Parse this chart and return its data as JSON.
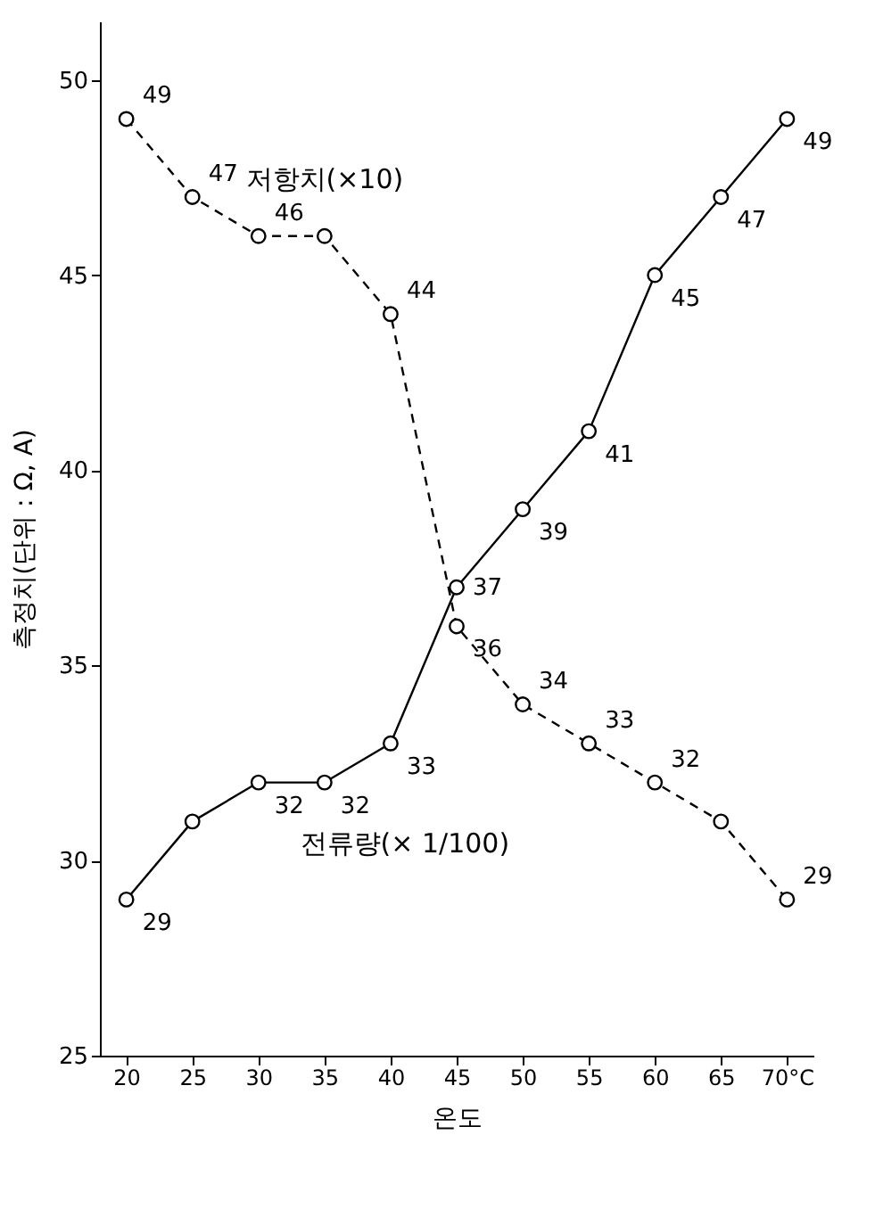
{
  "chart_data": {
    "type": "line",
    "xlabel": "온도",
    "ylabel": "측정치(단위 : Ω, A)",
    "x": [
      20,
      25,
      30,
      35,
      40,
      45,
      50,
      55,
      60,
      65,
      70
    ],
    "series": [
      {
        "name": "저항치(×10)",
        "color": "#000000",
        "line_style": "dashed",
        "values": [
          49,
          47,
          46,
          46,
          44,
          36,
          34,
          33,
          32,
          31,
          29
        ],
        "value_labels": [
          "49",
          "47",
          "46",
          null,
          "44",
          "36",
          "34",
          "33",
          "32",
          null,
          "29"
        ]
      },
      {
        "name": "전류량(× 1/100)",
        "color": "#000000",
        "line_style": "solid",
        "values": [
          29,
          31,
          32,
          32,
          33,
          37,
          39,
          41,
          45,
          47,
          49
        ],
        "value_labels": [
          "29",
          null,
          "32",
          "32",
          "33",
          "37",
          "39",
          "41",
          "45",
          "47",
          "49"
        ]
      }
    ],
    "xlim": [
      18,
      72
    ],
    "xticks": [
      20,
      25,
      30,
      35,
      40,
      45,
      50,
      55,
      60,
      65,
      {
        "value": 70,
        "label": "70°C"
      }
    ],
    "ylim": [
      25,
      51.5
    ],
    "yticks": [
      25,
      30,
      35,
      40,
      45,
      50
    ],
    "grid": false,
    "legend": false,
    "marker": "circle"
  }
}
